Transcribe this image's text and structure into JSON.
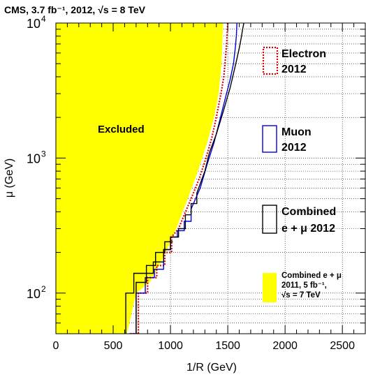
{
  "chart_data": {
    "type": "line",
    "title": "CMS,  3.7 fb⁻¹,  2012, √s = 8 TeV",
    "xlabel": "1/R  (GeV)",
    "ylabel": "μ  (GeV)",
    "xlim": [
      0,
      2700
    ],
    "ylim": [
      50,
      10000
    ],
    "yscale": "log",
    "grid": true,
    "x_ticks": [
      "0",
      "500",
      "1000",
      "1500",
      "2000",
      "2500"
    ],
    "y_ticks": [
      {
        "base": "10",
        "exp": "2"
      },
      {
        "base": "10",
        "exp": "3"
      },
      {
        "base": "10",
        "exp": "4"
      }
    ],
    "annotation": "Excluded",
    "legend": [
      {
        "label": [
          "Electron",
          "2012"
        ],
        "style": "electron"
      },
      {
        "label": [
          "Muon",
          "2012"
        ],
        "style": "muon"
      },
      {
        "label": [
          "Combined",
          "e + μ 2012"
        ],
        "style": "combined"
      },
      {
        "label": [
          "Combined e + μ",
          "2011, 5 fb⁻¹,",
          "√s = 7 TeV"
        ],
        "style": "fill"
      }
    ],
    "series": [
      {
        "name": "Combined e + μ 2011, 5 fb⁻¹, √s = 7 TeV",
        "style": "fill",
        "color": "#ffff00",
        "x": [
          1460,
          1445,
          1420,
          1380,
          1320,
          1240,
          1150,
          1050,
          980,
          900,
          820,
          700,
          620,
          0
        ],
        "y": [
          10000,
          5000,
          3000,
          2000,
          1300,
          800,
          500,
          300,
          220,
          160,
          120,
          100,
          50,
          50
        ]
      },
      {
        "name": "Electron 2012",
        "style": "electron",
        "color": "#dd0000",
        "x": [
          650,
          720,
          720,
          800,
          800,
          880,
          880,
          950,
          950,
          1010,
          1010,
          1070,
          1120,
          1180,
          1250,
          1310,
          1360,
          1400,
          1440,
          1465,
          1480,
          1490,
          1495,
          1500
        ],
        "y": [
          50,
          50,
          100,
          100,
          130,
          130,
          160,
          160,
          200,
          200,
          260,
          300,
          380,
          500,
          700,
          1000,
          1400,
          2000,
          3000,
          4000,
          5500,
          7000,
          8500,
          10000
        ]
      },
      {
        "name": "Muon 2012",
        "style": "muon",
        "color": "#0000dd",
        "x": [
          640,
          700,
          700,
          780,
          780,
          860,
          860,
          940,
          940,
          1000,
          1000,
          1060,
          1060,
          1120,
          1120,
          1180,
          1180,
          1260,
          1320,
          1380,
          1430,
          1480,
          1520,
          1550,
          1565,
          1575,
          1580
        ],
        "y": [
          50,
          50,
          100,
          100,
          130,
          130,
          150,
          150,
          210,
          210,
          260,
          260,
          290,
          290,
          340,
          340,
          420,
          600,
          900,
          1300,
          1900,
          2800,
          3800,
          5000,
          6500,
          8000,
          10000
        ]
      },
      {
        "name": "Combined e + μ 2012",
        "style": "combined",
        "color": "#000000",
        "x": [
          700,
          700,
          790,
          790,
          850,
          850,
          940,
          940,
          1000,
          1000,
          1070,
          1070,
          1130,
          1130,
          1180,
          1180,
          1230,
          1230,
          1300,
          1340,
          1400,
          1460,
          1520,
          1570,
          1600,
          1620,
          1630,
          1640
        ],
        "y": [
          50,
          120,
          120,
          140,
          140,
          170,
          170,
          210,
          210,
          260,
          260,
          300,
          300,
          380,
          380,
          460,
          460,
          550,
          800,
          1100,
          1500,
          2200,
          3300,
          5000,
          6500,
          8000,
          9000,
          10000
        ]
      },
      {
        "name": "Combined e + μ 2012",
        "style": "combined",
        "color": "#000000",
        "x": [
          610,
          610,
          680,
          680,
          790,
          790,
          870,
          870,
          950,
          950,
          1020
        ],
        "y": [
          50,
          100,
          100,
          140,
          140,
          160,
          160,
          200,
          200,
          240,
          240
        ]
      }
    ]
  }
}
